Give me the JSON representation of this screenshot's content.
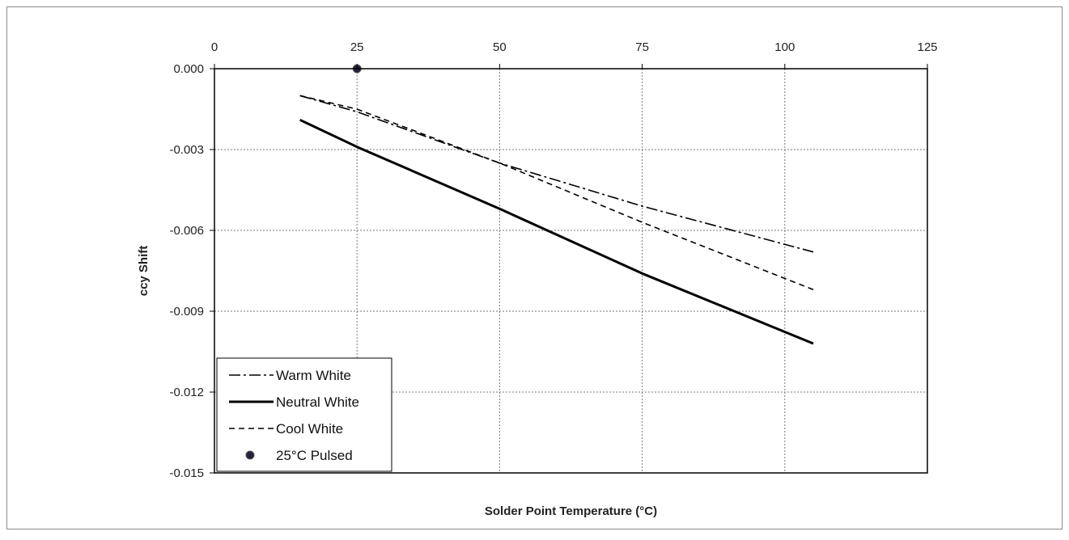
{
  "chart_data": {
    "type": "line",
    "title": "",
    "xlabel": "Solder Point Temperature (°C)",
    "ylabel": "ccy Shift",
    "xlim": [
      0,
      125
    ],
    "ylim": [
      -0.015,
      0
    ],
    "x_ticks": [
      0,
      25,
      50,
      75,
      100,
      125
    ],
    "x_tick_labels": [
      "0",
      "25",
      "50",
      "75",
      "100",
      "125"
    ],
    "y_ticks": [
      0,
      -0.003,
      -0.006,
      -0.009,
      -0.012,
      -0.015
    ],
    "y_tick_labels": [
      "0.000",
      "-0.003",
      "-0.006",
      "-0.009",
      "-0.012",
      "-0.015"
    ],
    "x_axis_position": "top",
    "grid": true,
    "legend_position": "bottom-left",
    "series": [
      {
        "name": "Warm White",
        "style": "dash-dot",
        "color": "#000000",
        "points": [
          {
            "x": 15,
            "y": -0.001
          },
          {
            "x": 25,
            "y": -0.0016
          },
          {
            "x": 50,
            "y": -0.0035
          },
          {
            "x": 75,
            "y": -0.0051
          },
          {
            "x": 105,
            "y": -0.0068
          }
        ]
      },
      {
        "name": "Neutral White",
        "style": "solid",
        "color": "#000000",
        "points": [
          {
            "x": 15,
            "y": -0.0019
          },
          {
            "x": 25,
            "y": -0.0029
          },
          {
            "x": 50,
            "y": -0.0052
          },
          {
            "x": 75,
            "y": -0.0076
          },
          {
            "x": 105,
            "y": -0.0102
          }
        ]
      },
      {
        "name": "Cool White",
        "style": "dashed",
        "color": "#000000",
        "points": [
          {
            "x": 15,
            "y": -0.001
          },
          {
            "x": 25,
            "y": -0.0015
          },
          {
            "x": 50,
            "y": -0.0035
          },
          {
            "x": 75,
            "y": -0.0057
          },
          {
            "x": 105,
            "y": -0.0082
          }
        ]
      },
      {
        "name": "25°C Pulsed",
        "style": "marker",
        "color": "#2a1f3d",
        "points": [
          {
            "x": 25,
            "y": 0
          }
        ]
      }
    ]
  }
}
